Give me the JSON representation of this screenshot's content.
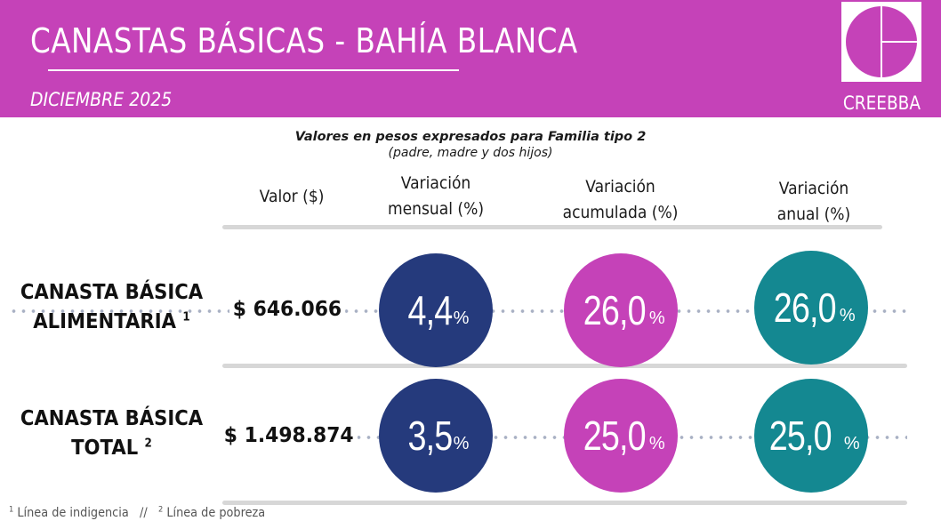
{
  "header": {
    "title": "CANASTAS  BÁSICAS - BAHÍA  BLANCA",
    "period": "DICIEMBRE 2025",
    "logo_name": "CREEBBA",
    "background_color": "#c542b8"
  },
  "note": {
    "main": "Valores en pesos expresados para Familia tipo 2",
    "sub": "(padre, madre y dos hijos)"
  },
  "columns": {
    "value": "Valor ($)",
    "monthly": [
      "Variación",
      "mensual (%)"
    ],
    "cumulative": [
      "Variación",
      "acumulada (%)"
    ],
    "annual": [
      "Variación",
      "anual (%)"
    ]
  },
  "rows": [
    {
      "label_line1": "CANASTA BÁSICA",
      "label_line2": "ALIMENTARIA",
      "footnote_mark": "1",
      "value": "$ 646.066",
      "monthly": "4,4",
      "cumulative": "26,0",
      "annual": "26,0",
      "pct_symbol": "%"
    },
    {
      "label_line1": "CANASTA BÁSICA",
      "label_line2": "TOTAL",
      "footnote_mark": "2",
      "value": "$ 1.498.874",
      "monthly": "3,5",
      "cumulative": "25,0",
      "annual": "25,0",
      "pct_symbol": "%"
    }
  ],
  "footnotes": {
    "mark1": "1",
    "text1": "Línea de indigencia",
    "separator": "//",
    "mark2": "2",
    "text2": "Línea de pobreza"
  },
  "colors": {
    "monthly": "#253a7c",
    "cumulative": "#c542b8",
    "annual": "#148891"
  }
}
